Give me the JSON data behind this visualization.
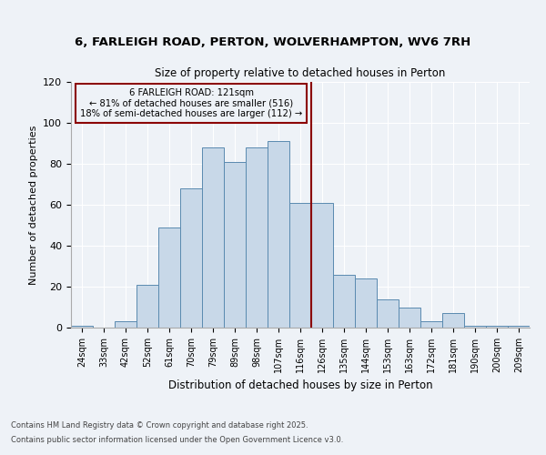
{
  "title1": "6, FARLEIGH ROAD, PERTON, WOLVERHAMPTON, WV6 7RH",
  "title2": "Size of property relative to detached houses in Perton",
  "xlabel": "Distribution of detached houses by size in Perton",
  "ylabel": "Number of detached properties",
  "bins": [
    "24sqm",
    "33sqm",
    "42sqm",
    "52sqm",
    "61sqm",
    "70sqm",
    "79sqm",
    "89sqm",
    "98sqm",
    "107sqm",
    "116sqm",
    "126sqm",
    "135sqm",
    "144sqm",
    "153sqm",
    "163sqm",
    "172sqm",
    "181sqm",
    "190sqm",
    "200sqm",
    "209sqm"
  ],
  "values": [
    1,
    0,
    3,
    21,
    49,
    68,
    88,
    81,
    88,
    91,
    61,
    61,
    26,
    24,
    14,
    10,
    3,
    7,
    1,
    1,
    1
  ],
  "bar_color": "#c8d8e8",
  "bar_edge_color": "#5a8ab0",
  "vline_x_index": 10,
  "vline_color": "#8b0000",
  "annotation_text": "6 FARLEIGH ROAD: 121sqm\n← 81% of detached houses are smaller (516)\n18% of semi-detached houses are larger (112) →",
  "annotation_box_color": "#8b0000",
  "annotation_text_color": "#000000",
  "background_color": "#eef2f7",
  "ylim": [
    0,
    120
  ],
  "yticks": [
    0,
    20,
    40,
    60,
    80,
    100,
    120
  ],
  "footnote1": "Contains HM Land Registry data © Crown copyright and database right 2025.",
  "footnote2": "Contains public sector information licensed under the Open Government Licence v3.0."
}
